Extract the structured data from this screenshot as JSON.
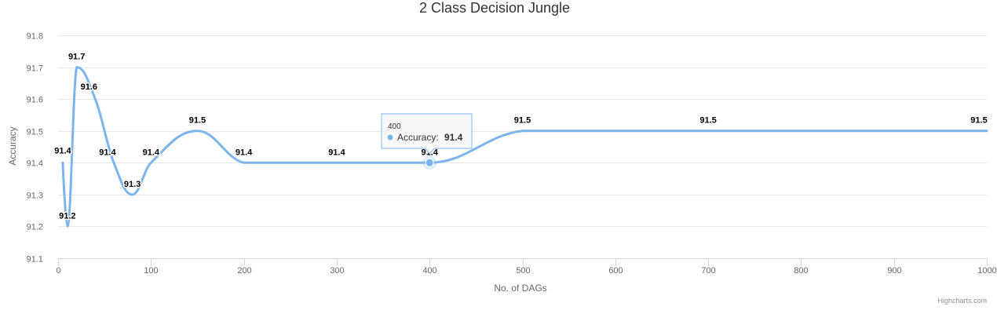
{
  "chart_data": {
    "type": "line",
    "title": "2 Class Decision Jungle",
    "xlabel": "No. of DAGs",
    "ylabel": "Accuracy",
    "xlim": [
      0,
      1000
    ],
    "ylim": [
      91.1,
      91.8
    ],
    "xticks": [
      0,
      100,
      200,
      300,
      400,
      500,
      600,
      700,
      800,
      900,
      1000
    ],
    "yticks": [
      91.1,
      91.2,
      91.3,
      91.4,
      91.5,
      91.6,
      91.7,
      91.8
    ],
    "grid": true,
    "legend": "none",
    "series": [
      {
        "name": "Accuracy",
        "color": "#7cb5ec",
        "x": [
          5,
          10,
          20,
          40,
          60,
          80,
          100,
          150,
          200,
          300,
          400,
          500,
          700,
          1000
        ],
        "values": [
          91.4,
          91.2,
          91.7,
          91.6,
          91.4,
          91.3,
          91.4,
          91.5,
          91.4,
          91.4,
          91.4,
          91.5,
          91.5,
          91.5
        ]
      }
    ],
    "tooltip": {
      "x": 400,
      "header": "400",
      "series": "Accuracy",
      "value": "91.4"
    }
  },
  "credits": "Highcharts.com"
}
